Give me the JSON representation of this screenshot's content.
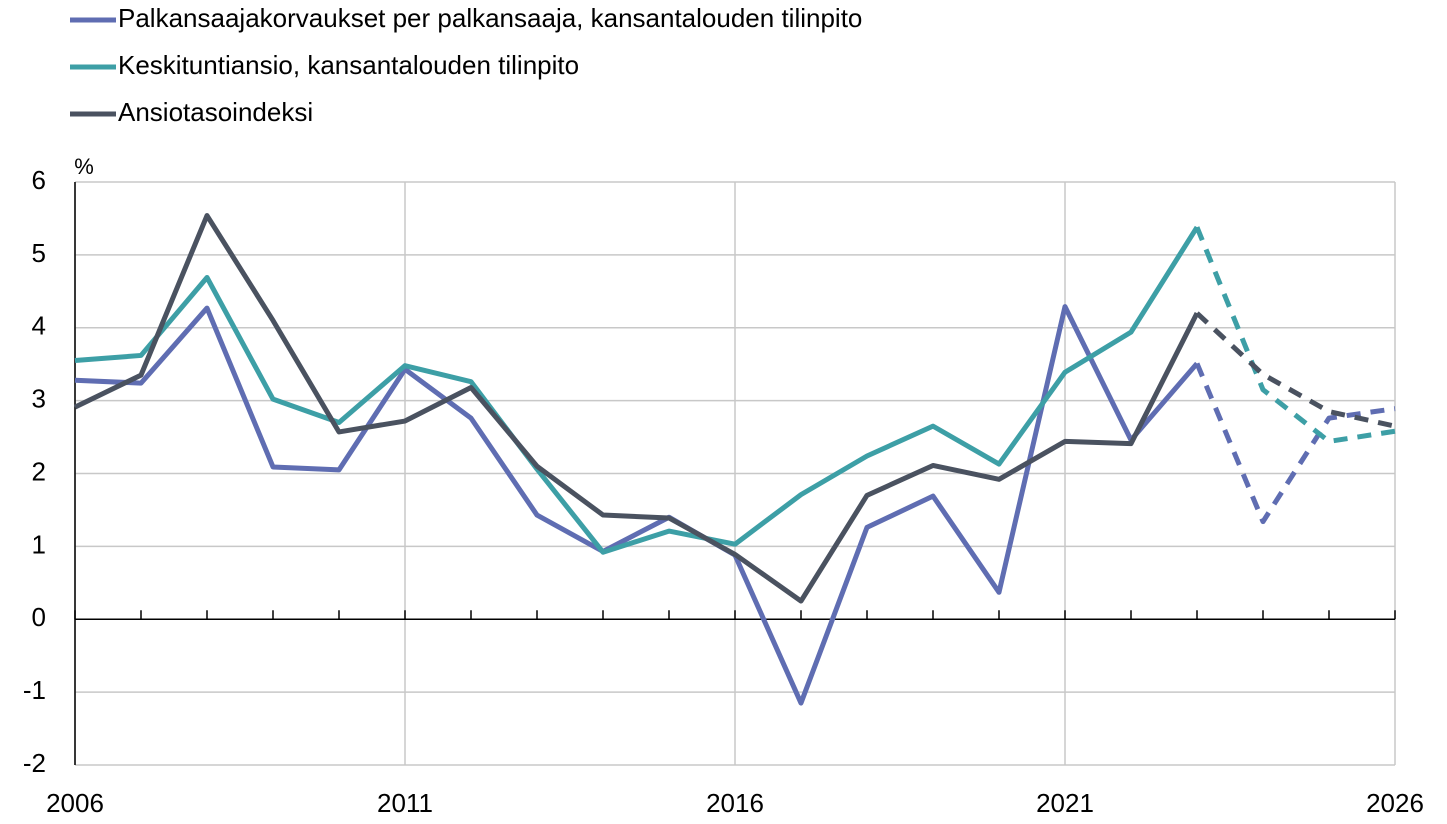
{
  "chart_data": {
    "type": "line",
    "y_label": "%",
    "x": [
      2006,
      2007,
      2008,
      2009,
      2010,
      2011,
      2012,
      2013,
      2014,
      2015,
      2016,
      2017,
      2018,
      2019,
      2020,
      2021,
      2022,
      2023,
      2024,
      2025,
      2026
    ],
    "series": [
      {
        "name": "Palkansaajakorvaukset per palkansaaja, kansantalouden tilinpito",
        "color": "#5f6db2",
        "values": [
          3.28,
          3.24,
          4.27,
          2.09,
          2.05,
          3.43,
          2.76,
          1.43,
          0.93,
          1.4,
          0.88,
          -1.15,
          1.26,
          1.69,
          0.37,
          4.29,
          2.46,
          3.51,
          1.34,
          2.76,
          2.89
        ]
      },
      {
        "name": "Keskituntiansio, kansantalouden tilinpito",
        "color": "#3d9fa6",
        "values": [
          3.55,
          3.62,
          4.69,
          3.02,
          2.7,
          3.48,
          3.26,
          2.06,
          0.92,
          1.21,
          1.03,
          1.71,
          2.24,
          2.65,
          2.13,
          3.39,
          3.94,
          5.38,
          3.15,
          2.44,
          2.58
        ]
      },
      {
        "name": "Ansiotasoindeksi",
        "color": "#4a5260",
        "values": [
          2.91,
          3.35,
          5.54,
          4.1,
          2.57,
          2.72,
          3.18,
          2.1,
          1.43,
          1.39,
          0.89,
          0.25,
          1.7,
          2.11,
          1.92,
          2.44,
          2.41,
          4.2,
          3.36,
          2.85,
          2.65
        ]
      }
    ],
    "forecast_from": 2023,
    "xlim": [
      2006,
      2026
    ],
    "xticks": [
      2006,
      2011,
      2016,
      2021,
      2026
    ],
    "ylim": [
      -2,
      6
    ],
    "yticks": [
      -2,
      -1,
      0,
      1,
      2,
      3,
      4,
      5,
      6
    ],
    "grid": true,
    "legend": "top-left"
  }
}
